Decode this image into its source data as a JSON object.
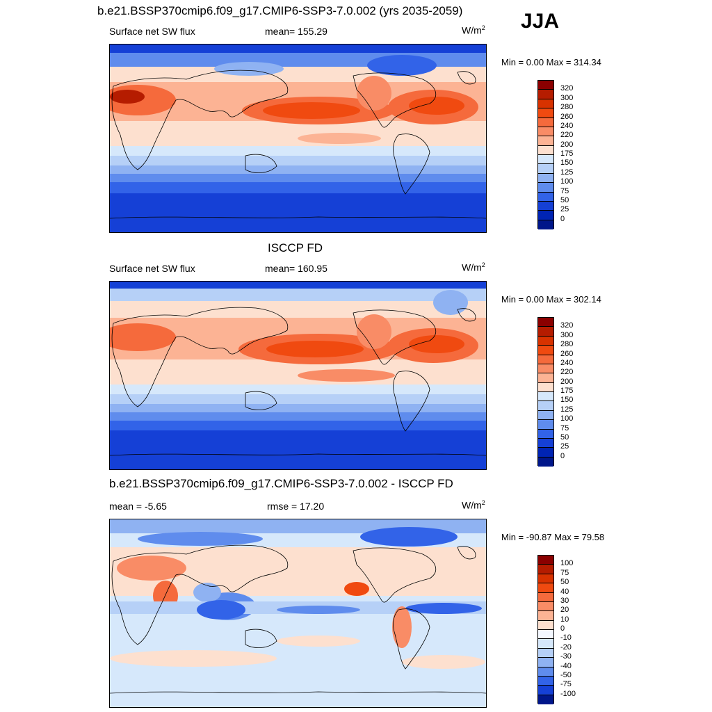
{
  "season": "JJA",
  "panels": [
    {
      "id": "model",
      "title": "b.e21.BSSP370cmip6.f09_g17.CMIP6-SSP3-7.0.002 (yrs 2035-2059)",
      "left_label": "Surface net SW flux",
      "center_label": "mean= 155.29",
      "units": "W/m",
      "units_sup": "2",
      "minmax": "Min =   0.00 Max = 314.34",
      "colorbar_labels": [
        "320",
        "300",
        "280",
        "260",
        "240",
        "220",
        "200",
        "175",
        "150",
        "125",
        "100",
        "75",
        "50",
        "25",
        "0"
      ],
      "colorbar_colors": [
        "#8b0000",
        "#b51c00",
        "#d83200",
        "#f04a10",
        "#f56a3c",
        "#f98c66",
        "#fcb394",
        "#fde0cf",
        "#d6e8fb",
        "#b6d0f7",
        "#8fb2f2",
        "#5f8ced",
        "#3263e8",
        "#1540d6",
        "#0024b4",
        "#00168a"
      ]
    },
    {
      "id": "obs",
      "title": "ISCCP FD",
      "left_label": "Surface net SW flux",
      "center_label": "mean= 160.95",
      "units": "W/m",
      "units_sup": "2",
      "minmax": "Min =   0.00 Max = 302.14",
      "colorbar_labels": [
        "320",
        "300",
        "280",
        "260",
        "240",
        "220",
        "200",
        "175",
        "150",
        "125",
        "100",
        "75",
        "50",
        "25",
        "0"
      ],
      "colorbar_colors": [
        "#8b0000",
        "#b51c00",
        "#d83200",
        "#f04a10",
        "#f56a3c",
        "#f98c66",
        "#fcb394",
        "#fde0cf",
        "#d6e8fb",
        "#b6d0f7",
        "#8fb2f2",
        "#5f8ced",
        "#3263e8",
        "#1540d6",
        "#0024b4",
        "#00168a"
      ]
    },
    {
      "id": "diff",
      "title": "b.e21.BSSP370cmip6.f09_g17.CMIP6-SSP3-7.0.002 - ISCCP FD",
      "left_label": "mean =  -5.65",
      "center_label": "rmse =  17.20",
      "units": "W/m",
      "units_sup": "2",
      "minmax": "Min = -90.87 Max =  79.58",
      "colorbar_labels": [
        "100",
        "75",
        "50",
        "40",
        "30",
        "20",
        "10",
        "0",
        "-10",
        "-20",
        "-30",
        "-40",
        "-50",
        "-75",
        "-100"
      ],
      "colorbar_colors": [
        "#8b0000",
        "#b51c00",
        "#d83200",
        "#f04a10",
        "#f56a3c",
        "#f98c66",
        "#fcb394",
        "#fde0cf",
        "#f4f8ff",
        "#d6e8fb",
        "#b6d0f7",
        "#8fb2f2",
        "#5f8ced",
        "#3263e8",
        "#1540d6",
        "#00168a"
      ]
    }
  ]
}
